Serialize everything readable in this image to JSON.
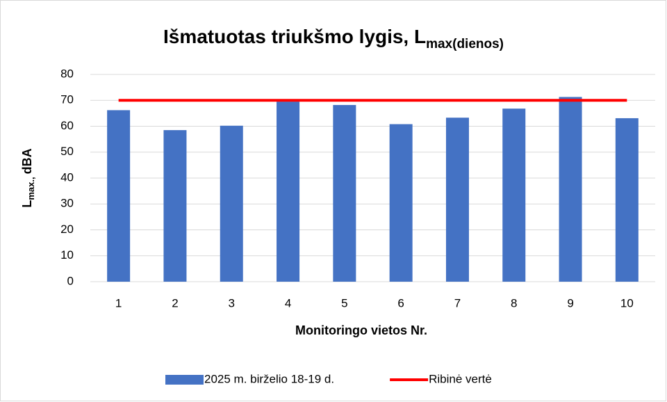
{
  "chart_data": {
    "type": "bar",
    "title": "Išmatuotas triukšmo lygis, L",
    "title_subscript": "max(dienos)",
    "xlabel": "Monitoringo vietos Nr.",
    "ylabel": "L",
    "ylabel_subscript": "max.,",
    "ylabel_unit": "dBA",
    "categories": [
      "1",
      "2",
      "3",
      "4",
      "5",
      "6",
      "7",
      "8",
      "9",
      "10"
    ],
    "series": [
      {
        "name": "2025 m. birželio 18-19 d.",
        "color": "#4472c4",
        "values": [
          66.2,
          58.5,
          60.2,
          69.5,
          68.2,
          60.8,
          63.3,
          66.8,
          71.3,
          63.1
        ]
      },
      {
        "name": "Ribinė vertė",
        "color": "#ff0000",
        "type": "line",
        "values": [
          70,
          70,
          70,
          70,
          70,
          70,
          70,
          70,
          70,
          70
        ]
      }
    ],
    "ylim": [
      0,
      80
    ],
    "yticks": [
      0,
      10,
      20,
      30,
      40,
      50,
      60,
      70,
      80
    ],
    "grid": true,
    "legend": "bottom"
  }
}
